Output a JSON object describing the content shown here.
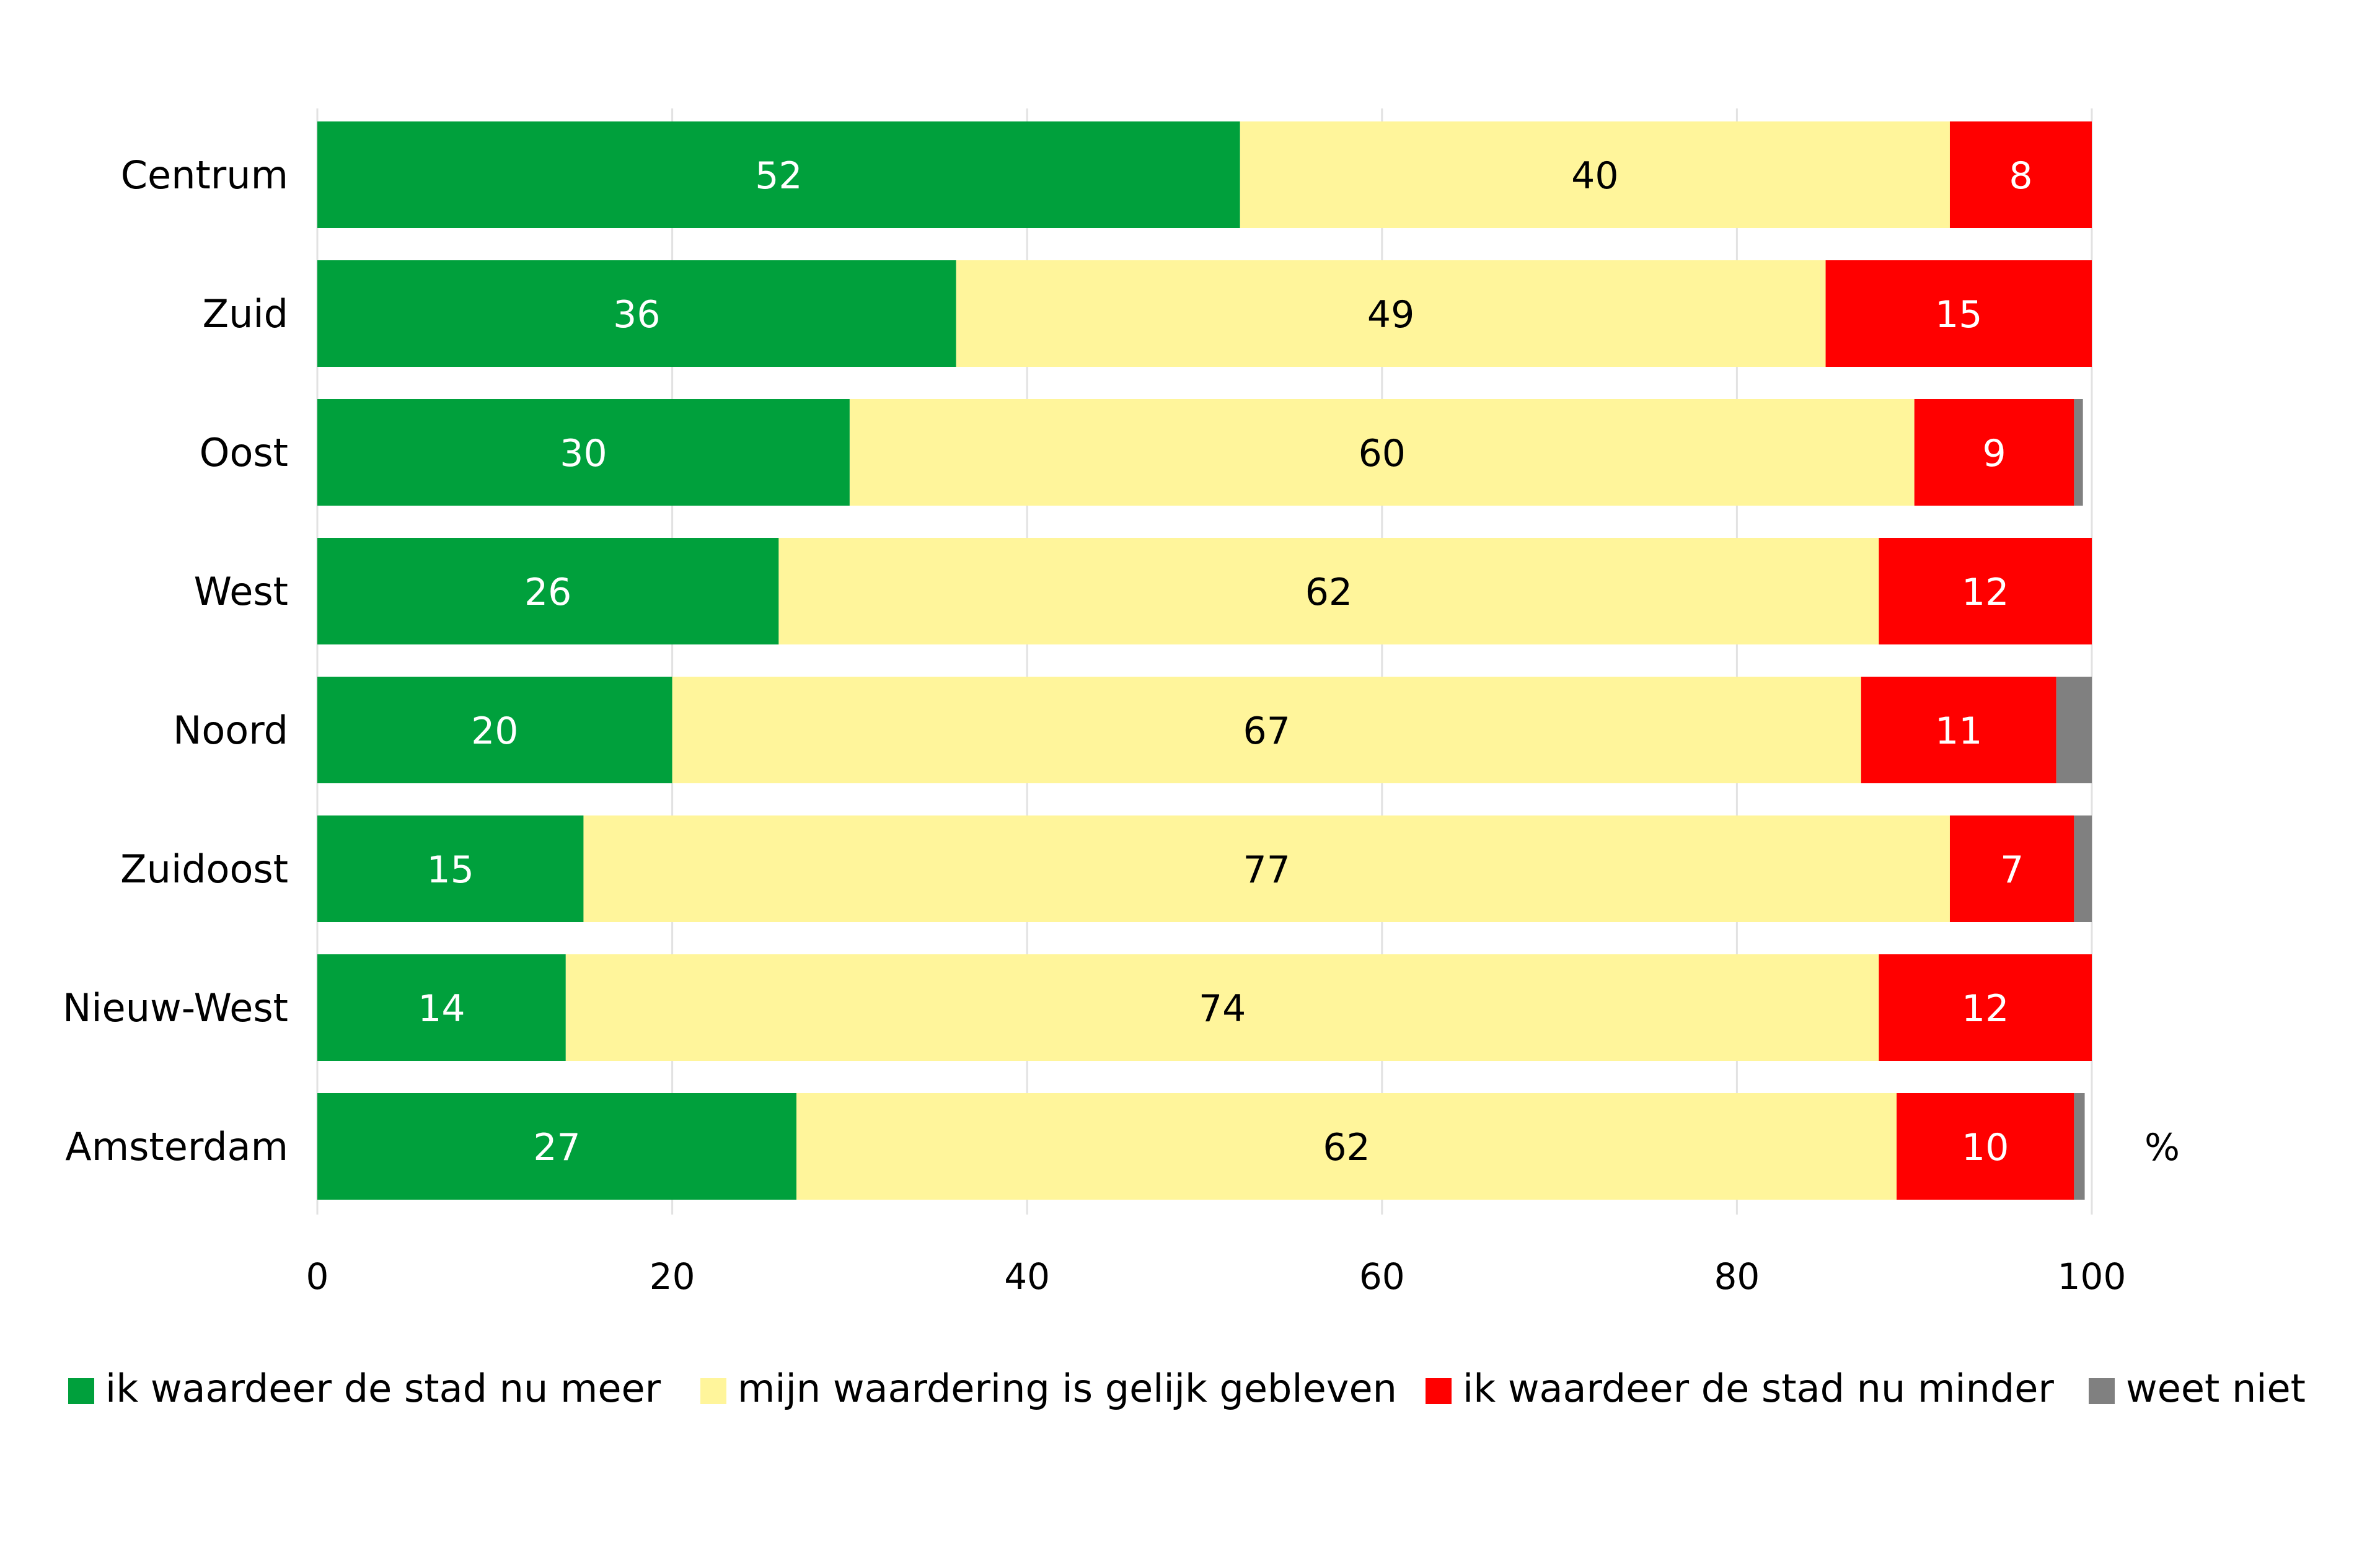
{
  "chart_data": {
    "type": "bar",
    "orientation": "horizontal",
    "stacked": true,
    "title": "",
    "xlabel": "",
    "ylabel": "",
    "unit_label": "%",
    "xlim": [
      0,
      100
    ],
    "x_ticks": [
      "0",
      "20",
      "40",
      "60",
      "80",
      "100"
    ],
    "grid": true,
    "legend_position": "bottom",
    "categories": [
      "Centrum",
      "Zuid",
      "Oost",
      "West",
      "Noord",
      "Zuidoost",
      "Nieuw-West",
      "Amsterdam"
    ],
    "series": [
      {
        "name": "ik waardeer de stad nu meer",
        "color": "#00a03c",
        "label_color": "#ffffff",
        "values": [
          52,
          36,
          30,
          26,
          20,
          15,
          14,
          27
        ],
        "labels": [
          "52",
          "36",
          "30",
          "26",
          "20",
          "15",
          "14",
          "27"
        ]
      },
      {
        "name": "mijn waardering is gelijk gebleven",
        "color": "#fff59b",
        "label_color": "#000000",
        "values": [
          40,
          49,
          60,
          62,
          67,
          77,
          74,
          62
        ],
        "labels": [
          "40",
          "49",
          "60",
          "62",
          "67",
          "77",
          "74",
          "62"
        ]
      },
      {
        "name": "ik waardeer de stad nu minder",
        "color": "#ff0000",
        "label_color": "#ffffff",
        "values": [
          8,
          15,
          9,
          12,
          11,
          7,
          12,
          10
        ],
        "labels": [
          "8",
          "15",
          "9",
          "12",
          "11",
          "7",
          "12",
          "10"
        ]
      },
      {
        "name": "weet niet",
        "color": "#808080",
        "label_color": "#ffffff",
        "values": [
          0,
          0,
          0.5,
          0,
          2,
          1,
          0.3,
          0.6
        ],
        "labels": [
          "",
          "",
          "",
          "",
          "",
          "",
          "",
          ""
        ]
      }
    ]
  }
}
